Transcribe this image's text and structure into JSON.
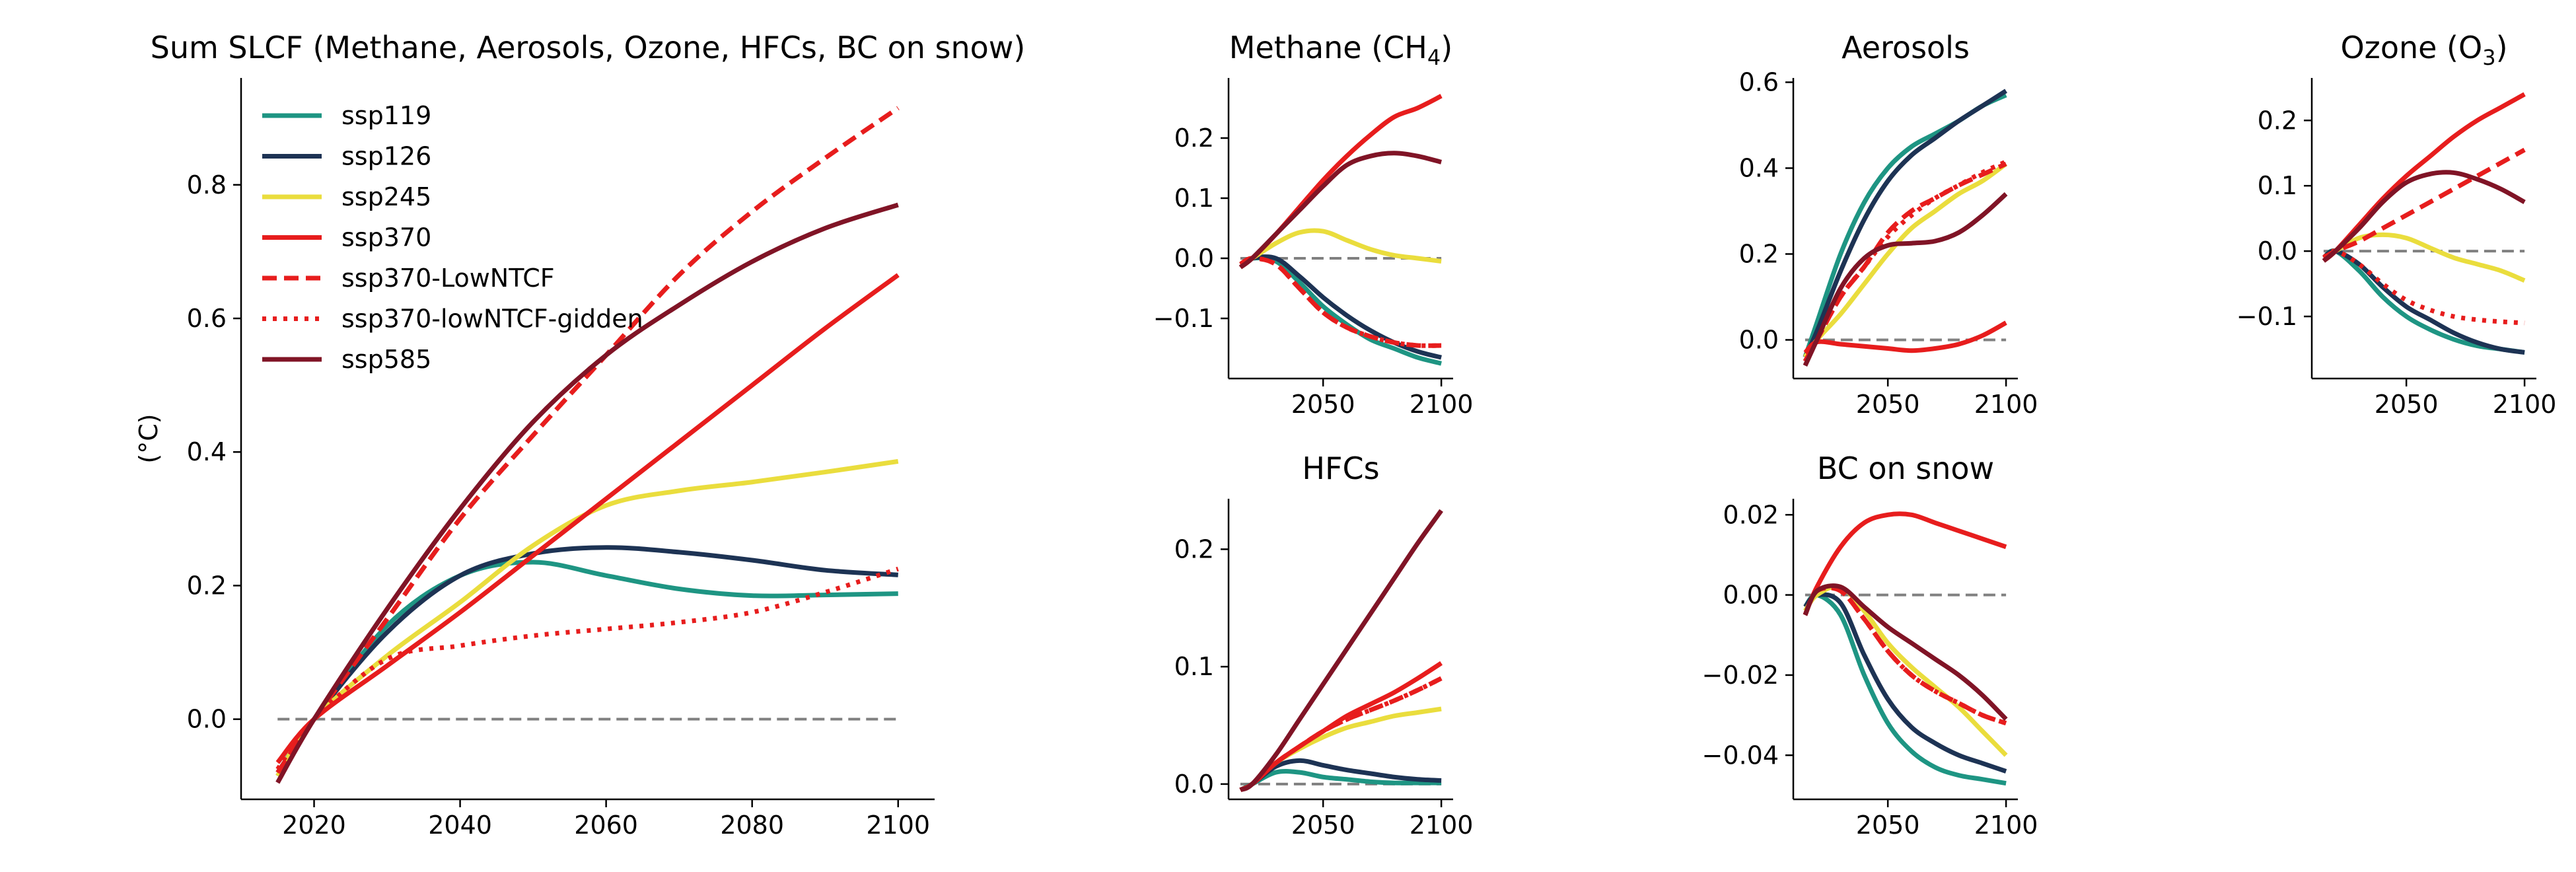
{
  "colors": {
    "ssp119": "#1e9583",
    "ssp126": "#1d3354",
    "ssp245": "#eadd3d",
    "ssp370": "#e71d1d",
    "ssp585": "#801426",
    "zero_line": "#808080"
  },
  "legend": {
    "placement": "top-left",
    "entries": [
      {
        "key": "ssp119",
        "label": "ssp119",
        "style": "solid"
      },
      {
        "key": "ssp126",
        "label": "ssp126",
        "style": "solid"
      },
      {
        "key": "ssp245",
        "label": "ssp245",
        "style": "solid"
      },
      {
        "key": "ssp370",
        "label": "ssp370",
        "style": "solid"
      },
      {
        "key": "ssp370",
        "label": "ssp370-LowNTCF",
        "style": "dashed"
      },
      {
        "key": "ssp370",
        "label": "ssp370-lowNTCF-gidden",
        "style": "dotted"
      },
      {
        "key": "ssp585",
        "label": "ssp585",
        "style": "solid"
      }
    ]
  },
  "chart_data": [
    {
      "id": "sum",
      "type": "line",
      "title": "Sum SLCF (Methane, Aerosols, Ozone, HFCs, BC on snow)",
      "ylabel": "(°C)",
      "xlim": [
        2010,
        2105
      ],
      "ylim": [
        -0.12,
        0.96
      ],
      "xticks": [
        2020,
        2040,
        2060,
        2080,
        2100
      ],
      "yticks": [
        0.0,
        0.2,
        0.4,
        0.6,
        0.8
      ],
      "ytick_labels": [
        "0.0",
        "0.2",
        "0.4",
        "0.6",
        "0.8"
      ],
      "zero_line": true,
      "x": [
        2015,
        2020,
        2030,
        2040,
        2050,
        2060,
        2070,
        2080,
        2090,
        2100
      ],
      "series": [
        {
          "name": "ssp119",
          "style": "solid",
          "values": [
            -0.08,
            0.0,
            0.14,
            0.215,
            0.235,
            0.215,
            0.195,
            0.185,
            0.186,
            0.188
          ]
        },
        {
          "name": "ssp126",
          "style": "solid",
          "values": [
            -0.085,
            0.0,
            0.13,
            0.215,
            0.248,
            0.257,
            0.25,
            0.238,
            0.223,
            0.216
          ]
        },
        {
          "name": "ssp245",
          "style": "solid",
          "values": [
            -0.085,
            0.0,
            0.095,
            0.175,
            0.26,
            0.32,
            0.342,
            0.355,
            0.37,
            0.386
          ]
        },
        {
          "name": "ssp370",
          "style": "solid",
          "values": [
            -0.065,
            0.0,
            0.08,
            0.16,
            0.245,
            0.33,
            0.415,
            0.5,
            0.585,
            0.665
          ]
        },
        {
          "name": "ssp370-LowNTCF",
          "style": "dashed",
          "values": [
            -0.08,
            0.0,
            0.15,
            0.3,
            0.425,
            0.545,
            0.665,
            0.76,
            0.84,
            0.915
          ]
        },
        {
          "name": "ssp370-lowNTCF-gidden",
          "style": "dotted",
          "values": [
            -0.075,
            0.0,
            0.09,
            0.11,
            0.125,
            0.135,
            0.145,
            0.16,
            0.19,
            0.225
          ]
        },
        {
          "name": "ssp585",
          "style": "solid",
          "values": [
            -0.095,
            0.0,
            0.165,
            0.315,
            0.445,
            0.545,
            0.62,
            0.685,
            0.735,
            0.77
          ]
        }
      ]
    },
    {
      "id": "methane",
      "type": "line",
      "title": "Methane (CH4)",
      "xlim": [
        2010,
        2105
      ],
      "ylim": [
        -0.2,
        0.3
      ],
      "xticks": [
        2050,
        2100
      ],
      "yticks": [
        -0.1,
        0.0,
        0.1,
        0.2
      ],
      "ytick_labels": [
        "−0.1",
        "0.0",
        "0.1",
        "0.2"
      ],
      "zero_line": true,
      "x": [
        2015,
        2020,
        2030,
        2040,
        2050,
        2060,
        2070,
        2080,
        2090,
        2100
      ],
      "series": [
        {
          "name": "ssp119",
          "style": "solid",
          "values": [
            -0.01,
            0.0,
            -0.005,
            -0.04,
            -0.08,
            -0.11,
            -0.135,
            -0.15,
            -0.165,
            -0.175
          ]
        },
        {
          "name": "ssp126",
          "style": "solid",
          "values": [
            -0.01,
            0.0,
            0.0,
            -0.03,
            -0.065,
            -0.095,
            -0.12,
            -0.14,
            -0.155,
            -0.165
          ]
        },
        {
          "name": "ssp245",
          "style": "solid",
          "values": [
            -0.01,
            0.0,
            0.025,
            0.043,
            0.045,
            0.03,
            0.015,
            0.005,
            0.0,
            -0.005
          ]
        },
        {
          "name": "ssp370",
          "style": "solid",
          "values": [
            -0.015,
            0.0,
            0.04,
            0.085,
            0.13,
            0.17,
            0.205,
            0.235,
            0.25,
            0.27
          ]
        },
        {
          "name": "ssp370-LowNTCF",
          "style": "dashed",
          "values": [
            -0.01,
            0.0,
            -0.01,
            -0.05,
            -0.09,
            -0.115,
            -0.13,
            -0.14,
            -0.145,
            -0.145
          ]
        },
        {
          "name": "ssp370-lowNTCF-gidden",
          "style": "dotted",
          "values": [
            -0.01,
            0.0,
            -0.01,
            -0.05,
            -0.09,
            -0.115,
            -0.13,
            -0.14,
            -0.145,
            -0.145
          ]
        },
        {
          "name": "ssp585",
          "style": "solid",
          "values": [
            -0.015,
            0.0,
            0.04,
            0.08,
            0.12,
            0.155,
            0.17,
            0.175,
            0.17,
            0.16
          ]
        }
      ]
    },
    {
      "id": "aerosols",
      "type": "line",
      "title": "Aerosols",
      "xlim": [
        2010,
        2105
      ],
      "ylim": [
        -0.09,
        0.61
      ],
      "xticks": [
        2050,
        2100
      ],
      "yticks": [
        0.0,
        0.2,
        0.4,
        0.6
      ],
      "ytick_labels": [
        "0.0",
        "0.2",
        "0.4",
        "0.6"
      ],
      "zero_line": true,
      "x": [
        2015,
        2020,
        2030,
        2040,
        2050,
        2060,
        2070,
        2080,
        2090,
        2100
      ],
      "series": [
        {
          "name": "ssp119",
          "style": "solid",
          "values": [
            -0.04,
            0.04,
            0.2,
            0.32,
            0.4,
            0.45,
            0.48,
            0.51,
            0.545,
            0.57
          ]
        },
        {
          "name": "ssp126",
          "style": "solid",
          "values": [
            -0.04,
            0.02,
            0.16,
            0.28,
            0.37,
            0.43,
            0.47,
            0.51,
            0.545,
            0.58
          ]
        },
        {
          "name": "ssp245",
          "style": "solid",
          "values": [
            -0.04,
            0.0,
            0.06,
            0.13,
            0.2,
            0.26,
            0.3,
            0.34,
            0.37,
            0.41
          ]
        },
        {
          "name": "ssp370",
          "style": "solid",
          "values": [
            -0.03,
            -0.005,
            -0.01,
            -0.015,
            -0.02,
            -0.025,
            -0.02,
            -0.01,
            0.01,
            0.04
          ]
        },
        {
          "name": "ssp370-LowNTCF",
          "style": "dashed",
          "values": [
            -0.05,
            0.0,
            0.1,
            0.17,
            0.25,
            0.3,
            0.33,
            0.36,
            0.385,
            0.41
          ]
        },
        {
          "name": "ssp370-lowNTCF-gidden",
          "style": "dotted",
          "values": [
            -0.05,
            0.0,
            0.1,
            0.17,
            0.24,
            0.29,
            0.33,
            0.36,
            0.39,
            0.415
          ]
        },
        {
          "name": "ssp585",
          "style": "solid",
          "values": [
            -0.06,
            0.0,
            0.12,
            0.19,
            0.22,
            0.225,
            0.23,
            0.25,
            0.29,
            0.34
          ]
        }
      ]
    },
    {
      "id": "ozone",
      "type": "line",
      "title": "Ozone (O3)",
      "xlim": [
        2010,
        2105
      ],
      "ylim": [
        -0.195,
        0.265
      ],
      "xticks": [
        2050,
        2100
      ],
      "yticks": [
        -0.1,
        0.0,
        0.1,
        0.2
      ],
      "ytick_labels": [
        "−0.1",
        "0.0",
        "0.1",
        "0.2"
      ],
      "zero_line": true,
      "x": [
        2015,
        2020,
        2030,
        2040,
        2050,
        2060,
        2070,
        2080,
        2090,
        2100
      ],
      "series": [
        {
          "name": "ssp119",
          "style": "solid",
          "values": [
            -0.01,
            0.0,
            -0.03,
            -0.07,
            -0.1,
            -0.12,
            -0.135,
            -0.145,
            -0.15,
            -0.155
          ]
        },
        {
          "name": "ssp126",
          "style": "solid",
          "values": [
            -0.01,
            0.0,
            -0.02,
            -0.055,
            -0.085,
            -0.105,
            -0.125,
            -0.14,
            -0.15,
            -0.155
          ]
        },
        {
          "name": "ssp245",
          "style": "solid",
          "values": [
            -0.01,
            0.0,
            0.02,
            0.025,
            0.02,
            0.005,
            -0.01,
            -0.02,
            -0.03,
            -0.045
          ]
        },
        {
          "name": "ssp370",
          "style": "solid",
          "values": [
            -0.015,
            0.0,
            0.04,
            0.08,
            0.115,
            0.145,
            0.175,
            0.2,
            0.22,
            0.24
          ]
        },
        {
          "name": "ssp370-LowNTCF",
          "style": "dashed",
          "values": [
            -0.01,
            0.0,
            0.015,
            0.035,
            0.055,
            0.075,
            0.095,
            0.115,
            0.135,
            0.155
          ]
        },
        {
          "name": "ssp370-lowNTCF-gidden",
          "style": "dotted",
          "values": [
            -0.01,
            0.0,
            -0.02,
            -0.05,
            -0.075,
            -0.09,
            -0.1,
            -0.105,
            -0.108,
            -0.11
          ]
        },
        {
          "name": "ssp585",
          "style": "solid",
          "values": [
            -0.015,
            0.0,
            0.035,
            0.075,
            0.105,
            0.118,
            0.12,
            0.11,
            0.095,
            0.075
          ]
        }
      ]
    },
    {
      "id": "hfcs",
      "type": "line",
      "title": "HFCs",
      "xlim": [
        2010,
        2105
      ],
      "ylim": [
        -0.013,
        0.243
      ],
      "xticks": [
        2050,
        2100
      ],
      "yticks": [
        0.0,
        0.1,
        0.2
      ],
      "ytick_labels": [
        "0.0",
        "0.1",
        "0.2"
      ],
      "zero_line": true,
      "x": [
        2015,
        2020,
        2030,
        2040,
        2050,
        2060,
        2070,
        2080,
        2090,
        2100
      ],
      "series": [
        {
          "name": "ssp119",
          "style": "solid",
          "values": [
            -0.005,
            0.0,
            0.01,
            0.01,
            0.006,
            0.004,
            0.002,
            0.001,
            0.001,
            0.001
          ]
        },
        {
          "name": "ssp126",
          "style": "solid",
          "values": [
            -0.005,
            0.0,
            0.015,
            0.02,
            0.016,
            0.012,
            0.009,
            0.006,
            0.004,
            0.003
          ]
        },
        {
          "name": "ssp245",
          "style": "solid",
          "values": [
            -0.005,
            0.0,
            0.018,
            0.03,
            0.04,
            0.048,
            0.053,
            0.058,
            0.061,
            0.064
          ]
        },
        {
          "name": "ssp370",
          "style": "solid",
          "values": [
            -0.005,
            0.0,
            0.018,
            0.032,
            0.045,
            0.058,
            0.068,
            0.078,
            0.09,
            0.103
          ]
        },
        {
          "name": "ssp370-LowNTCF",
          "style": "dashed",
          "values": [
            -0.005,
            0.0,
            0.018,
            0.032,
            0.045,
            0.055,
            0.063,
            0.071,
            0.08,
            0.09
          ]
        },
        {
          "name": "ssp370-lowNTCF-gidden",
          "style": "dotted",
          "values": [
            -0.005,
            0.0,
            0.018,
            0.032,
            0.045,
            0.055,
            0.063,
            0.071,
            0.08,
            0.09
          ]
        },
        {
          "name": "ssp585",
          "style": "solid",
          "values": [
            -0.005,
            0.0,
            0.025,
            0.055,
            0.085,
            0.115,
            0.145,
            0.175,
            0.205,
            0.233
          ]
        }
      ]
    },
    {
      "id": "bc_snow",
      "type": "line",
      "title": "BC on snow",
      "xlim": [
        2010,
        2105
      ],
      "ylim": [
        -0.051,
        0.024
      ],
      "xticks": [
        2050,
        2100
      ],
      "yticks": [
        -0.04,
        -0.02,
        0.0,
        0.02
      ],
      "ytick_labels": [
        "−0.04",
        "−0.02",
        "0.00",
        "0.02"
      ],
      "zero_line": true,
      "x": [
        2015,
        2020,
        2030,
        2040,
        2050,
        2060,
        2070,
        2080,
        2090,
        2100
      ],
      "series": [
        {
          "name": "ssp119",
          "style": "solid",
          "values": [
            -0.003,
            0.0,
            -0.005,
            -0.02,
            -0.032,
            -0.039,
            -0.043,
            -0.045,
            -0.046,
            -0.047
          ]
        },
        {
          "name": "ssp126",
          "style": "solid",
          "values": [
            -0.003,
            0.0,
            -0.002,
            -0.015,
            -0.026,
            -0.033,
            -0.037,
            -0.04,
            -0.042,
            -0.044
          ]
        },
        {
          "name": "ssp245",
          "style": "solid",
          "values": [
            -0.004,
            0.0,
            0.002,
            -0.004,
            -0.012,
            -0.018,
            -0.023,
            -0.028,
            -0.034,
            -0.04
          ]
        },
        {
          "name": "ssp370",
          "style": "solid",
          "values": [
            -0.005,
            0.002,
            0.012,
            0.018,
            0.02,
            0.02,
            0.018,
            0.016,
            0.014,
            0.012
          ]
        },
        {
          "name": "ssp370-LowNTCF",
          "style": "dashed",
          "values": [
            -0.005,
            0.001,
            0.001,
            -0.006,
            -0.014,
            -0.02,
            -0.024,
            -0.027,
            -0.03,
            -0.032
          ]
        },
        {
          "name": "ssp370-lowNTCF-gidden",
          "style": "dotted",
          "values": [
            -0.005,
            0.001,
            0.001,
            -0.006,
            -0.014,
            -0.02,
            -0.024,
            -0.027,
            -0.03,
            -0.032
          ]
        },
        {
          "name": "ssp585",
          "style": "solid",
          "values": [
            -0.005,
            0.001,
            0.002,
            -0.003,
            -0.008,
            -0.012,
            -0.016,
            -0.02,
            -0.025,
            -0.031
          ]
        }
      ]
    }
  ]
}
